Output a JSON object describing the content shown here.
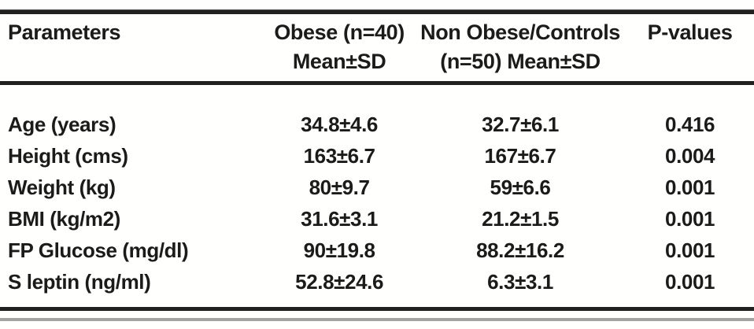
{
  "colors": {
    "rule": "#212121",
    "text": "#1b1b1b",
    "page_bar": "#a3a3a3",
    "background": "#fffffd"
  },
  "table": {
    "header": {
      "parameters": "Parameters",
      "obese_line1": "Obese (n=40)",
      "obese_line2": "Mean±SD",
      "controls_line1": "Non Obese/Controls",
      "controls_line2": "(n=50) Mean±SD",
      "p_values": "P-values"
    },
    "rows": [
      {
        "parameter": "Age (years)",
        "obese": "34.8±4.6",
        "controls": "32.7±6.1",
        "p_value": "0.416"
      },
      {
        "parameter": "Height (cms)",
        "obese": "163±6.7",
        "controls": "167±6.7",
        "p_value": "0.004"
      },
      {
        "parameter": "Weight (kg)",
        "obese": "80±9.7",
        "controls": "59±6.6",
        "p_value": "0.001"
      },
      {
        "parameter": "BMI (kg/m2)",
        "obese": "31.6±3.1",
        "controls": "21.2±1.5",
        "p_value": "0.001"
      },
      {
        "parameter": "FP Glucose (mg/dl)",
        "obese": "90±19.8",
        "controls": "88.2±16.2",
        "p_value": "0.001"
      },
      {
        "parameter": "S leptin (ng/ml)",
        "obese": "52.8±24.6",
        "controls": "6.3±3.1",
        "p_value": "0.001"
      }
    ]
  }
}
